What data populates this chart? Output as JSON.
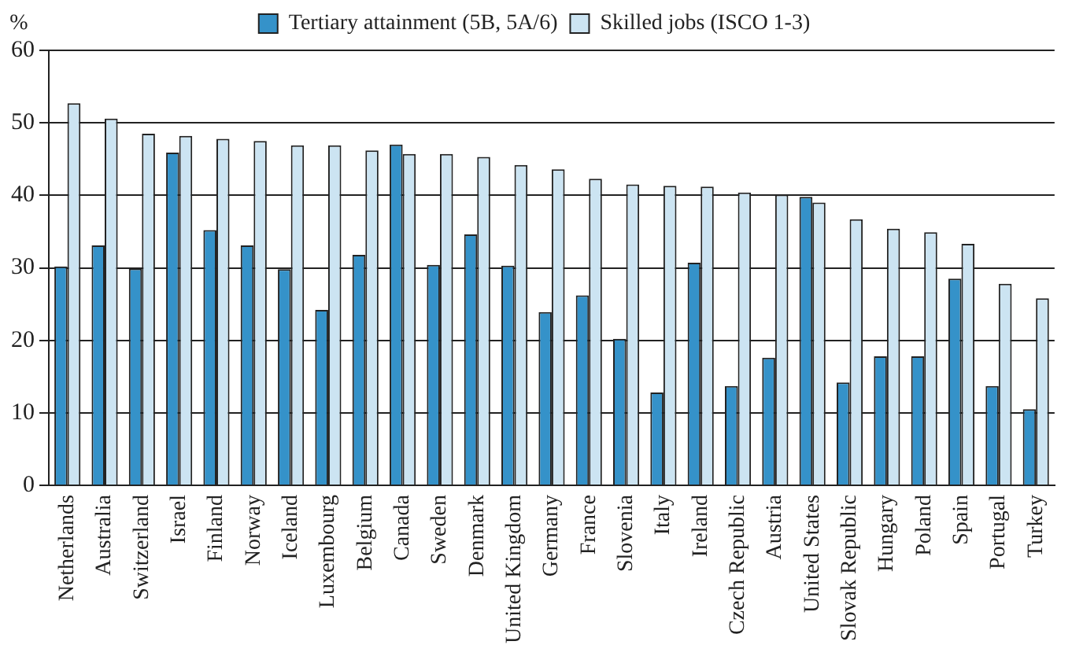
{
  "chart_data": {
    "type": "bar",
    "ylabel": "%",
    "categories": [
      "Netherlands",
      "Australia",
      "Switzerland",
      "Israel",
      "Finland",
      "Norway",
      "Iceland",
      "Luxembourg",
      "Belgium",
      "Canada",
      "Sweden",
      "Denmark",
      "United Kingdom",
      "Germany",
      "France",
      "Slovenia",
      "Italy",
      "Ireland",
      "Czech Republic",
      "Austria",
      "United States",
      "Slovak Republic",
      "Hungary",
      "Poland",
      "Spain",
      "Portugal",
      "Turkey"
    ],
    "series": [
      {
        "name": "Tertiary attainment (5B, 5A/6)",
        "color": "#3592c9",
        "values": [
          30.2,
          33.1,
          29.9,
          45.9,
          35.2,
          33.1,
          29.8,
          24.2,
          31.8,
          47.0,
          30.4,
          34.6,
          30.3,
          23.9,
          26.2,
          20.2,
          12.8,
          30.7,
          13.7,
          17.6,
          39.8,
          14.2,
          17.8,
          17.8,
          28.5,
          13.7,
          10.5
        ]
      },
      {
        "name": "Skilled jobs (ISCO 1-3)",
        "color": "#cce4f2",
        "values": [
          52.7,
          50.6,
          48.5,
          48.2,
          47.8,
          47.5,
          46.9,
          46.9,
          46.2,
          45.7,
          45.7,
          45.3,
          44.2,
          43.6,
          42.3,
          41.5,
          41.3,
          41.2,
          40.4,
          40.1,
          39.0,
          36.7,
          35.4,
          34.9,
          33.3,
          27.8,
          25.8
        ]
      }
    ],
    "ylim": [
      0,
      60
    ],
    "yticks": [
      0,
      10,
      20,
      30,
      40,
      50,
      60
    ],
    "grid": "y",
    "legend": "top"
  }
}
